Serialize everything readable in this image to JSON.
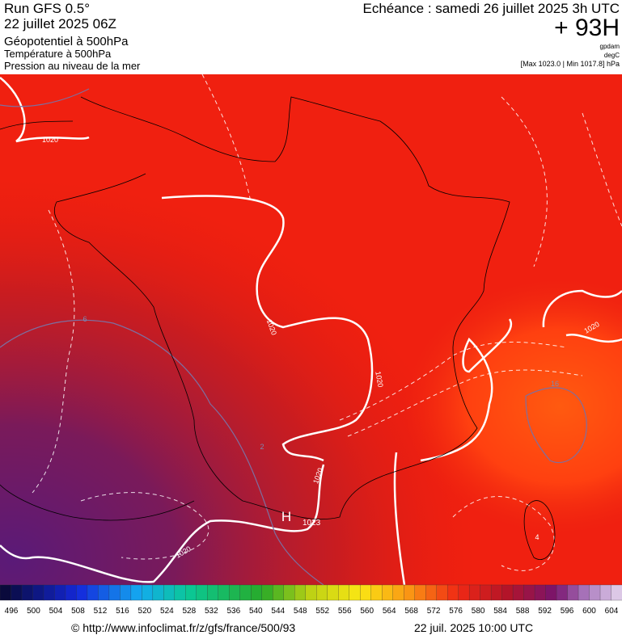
{
  "header": {
    "run": "Run GFS 0.5°",
    "run_date": "22 juillet 2025 06Z",
    "field1": "Géopotentiel à 500hPa",
    "field2": "Température à 500hPa",
    "field3": "Pression au niveau de la mer",
    "forecast": "Echéance : samedi 26 juillet 2025 3h UTC",
    "lead": "+ 93H",
    "unit1": "gpdam",
    "unit2": "degC",
    "pressure_range": "[Max 1023.0 | Min 1017.8] hPa"
  },
  "map": {
    "labels": [
      "1020",
      "1020",
      "1020",
      "1020",
      "1020",
      "1020",
      "6",
      "16",
      "4",
      "2",
      "H",
      "1023"
    ]
  },
  "colorbar": {
    "ticks": [
      496,
      500,
      504,
      508,
      512,
      516,
      520,
      524,
      528,
      532,
      536,
      540,
      544,
      548,
      552,
      556,
      560,
      564,
      568,
      572,
      576,
      580,
      584,
      588,
      592,
      596,
      600,
      604
    ]
  },
  "footer": {
    "url": "© http://www.infoclimat.fr/z/gfs/france/500/93",
    "timestamp": "22 juil. 2025 10:00 UTC"
  }
}
